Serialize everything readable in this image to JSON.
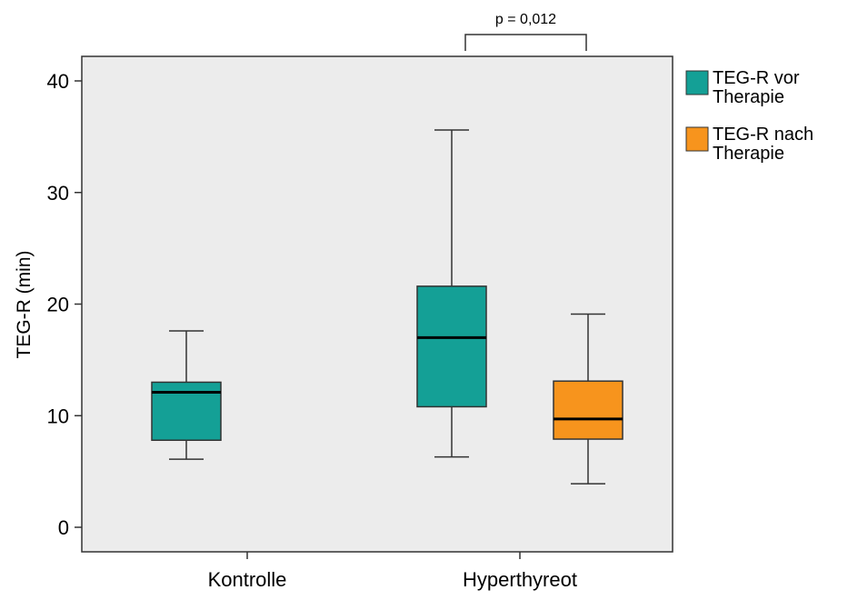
{
  "chart_data": {
    "type": "box",
    "ylabel": "TEG-R (min)",
    "ylim": [
      0,
      42
    ],
    "yticks": [
      0,
      10,
      20,
      30,
      40
    ],
    "categories": [
      "Kontrolle",
      "Hyperthyreot"
    ],
    "series": [
      {
        "name": "TEG-R vor Therapie",
        "color": "#14a096",
        "boxes": [
          {
            "category": "Kontrolle",
            "whisker_low": 6.1,
            "q1": 7.8,
            "median": 12.1,
            "q3": 13.0,
            "whisker_high": 17.6
          },
          {
            "category": "Hyperthyreot",
            "whisker_low": 6.3,
            "q1": 10.8,
            "median": 17.0,
            "q3": 21.6,
            "whisker_high": 35.6
          }
        ]
      },
      {
        "name": "TEG-R nach Therapie",
        "color": "#f7941d",
        "boxes": [
          {
            "category": "Hyperthyreot",
            "whisker_low": 3.9,
            "q1": 7.9,
            "median": 9.7,
            "q3": 13.1,
            "whisker_high": 19.1
          }
        ]
      }
    ],
    "legend": {
      "position": "right",
      "entries": [
        {
          "line1": "TEG-R vor",
          "line2": "Therapie",
          "color": "#14a096"
        },
        {
          "line1": "TEG-R nach",
          "line2": "Therapie",
          "color": "#f7941d"
        }
      ]
    },
    "annotation": {
      "text": "p = 0,012",
      "between": [
        "Hyperthyreot vor",
        "Hyperthyreot nach"
      ]
    },
    "plot_background": "#ececec",
    "grid": false
  }
}
